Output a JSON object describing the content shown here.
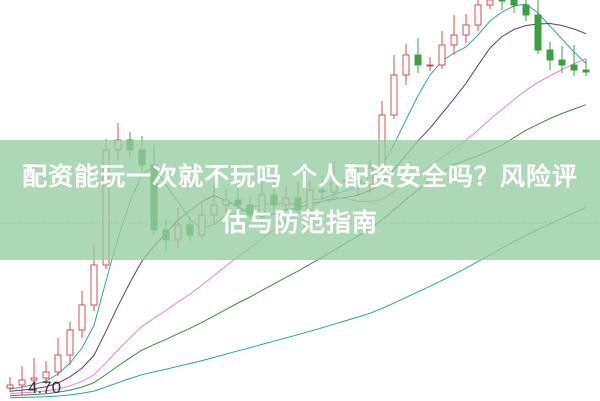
{
  "title": "配资能玩一次就不玩吗 个人配资安全吗？风险评估与防范指南",
  "chart_data": {
    "type": "candlestick",
    "price_label": "4.70",
    "up_color": "#d0504f",
    "down_color": "#3aa040",
    "closes": [
      4.75,
      4.8,
      4.82,
      4.88,
      5.05,
      5.3,
      5.55,
      5.95,
      7.1,
      7.2,
      7.1,
      6.95,
      6.3,
      6.2,
      6.35,
      6.25,
      6.45,
      6.55,
      6.6,
      6.55,
      6.45,
      6.65,
      6.55,
      6.62,
      6.5,
      6.7,
      6.68,
      6.78,
      6.8,
      6.75,
      6.92,
      7.45,
      7.85,
      8.05,
      7.95,
      7.95,
      8.15,
      8.25,
      8.35,
      8.55,
      8.65,
      8.6,
      8.55,
      8.45,
      8.1,
      8.0,
      7.95,
      7.9,
      7.88
    ],
    "moving_average_periods": [
      5,
      10,
      20,
      30,
      60
    ]
  }
}
